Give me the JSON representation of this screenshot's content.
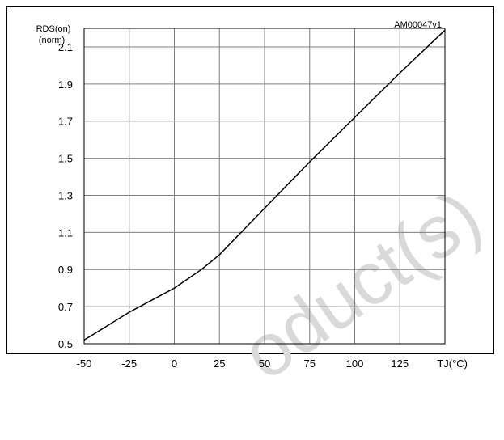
{
  "figure_id": "AM00047v1",
  "watermark": "oduct(s)",
  "chart_data": {
    "type": "line",
    "title": "",
    "ylabel_main": "RDS(on)",
    "ylabel_unit": "(norm)",
    "xlabel": "TJ(°C)",
    "xlim": [
      -50,
      150
    ],
    "ylim": [
      0.5,
      2.2
    ],
    "x_ticks": [
      -50,
      -25,
      0,
      25,
      50,
      75,
      100,
      125
    ],
    "y_ticks": [
      0.5,
      0.7,
      0.9,
      1.1,
      1.3,
      1.5,
      1.7,
      1.9,
      2.1
    ],
    "grid": true,
    "series": [
      {
        "x": [
          -50,
          -25,
          0,
          15,
          25,
          50,
          75,
          100,
          125,
          150
        ],
        "y": [
          0.52,
          0.67,
          0.8,
          0.9,
          0.98,
          1.23,
          1.48,
          1.72,
          1.96,
          2.19
        ]
      }
    ]
  }
}
